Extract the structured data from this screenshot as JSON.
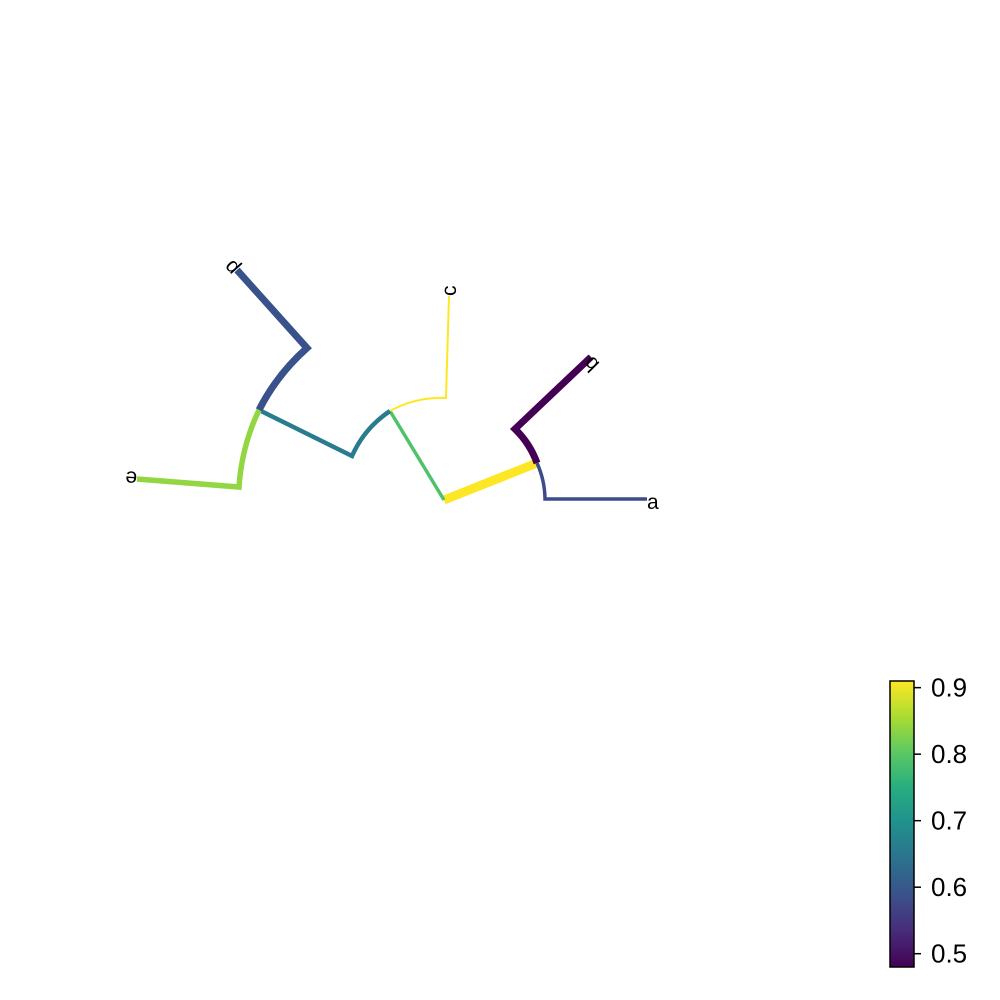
{
  "tree": {
    "leaves": [
      {
        "id": "a",
        "label": "a",
        "value": 0.58
      },
      {
        "id": "b",
        "label": "b",
        "value": 0.48
      },
      {
        "id": "c",
        "label": "c",
        "value": 0.91
      },
      {
        "id": "d",
        "label": "d",
        "value": 0.59
      },
      {
        "id": "e",
        "label": "e",
        "value": 0.84
      }
    ],
    "branches": [
      {
        "id": "root-ab",
        "value": 0.91
      },
      {
        "id": "ab-a",
        "value": 0.58
      },
      {
        "id": "ab-b",
        "value": 0.48
      },
      {
        "id": "root-cde",
        "value": 0.79
      },
      {
        "id": "cde-c",
        "value": 0.91
      },
      {
        "id": "cde-de",
        "value": 0.66
      },
      {
        "id": "de-d",
        "value": 0.59
      },
      {
        "id": "de-e",
        "value": 0.84
      }
    ]
  },
  "colorbar": {
    "colormap": "viridis",
    "min": 0.48,
    "max": 0.91,
    "ticks": [
      {
        "value": 0.5,
        "label": "0.5"
      },
      {
        "value": 0.6,
        "label": "0.6"
      },
      {
        "value": 0.7,
        "label": "0.7"
      },
      {
        "value": 0.8,
        "label": "0.8"
      },
      {
        "value": 0.9,
        "label": "0.9"
      }
    ]
  },
  "colors": {
    "viridis_stops": [
      "#440154",
      "#472c7a",
      "#3b518b",
      "#2c718e",
      "#21908d",
      "#27ad81",
      "#5cc863",
      "#aadc32",
      "#fde725"
    ],
    "text": "#000000",
    "background": "#ffffff"
  }
}
